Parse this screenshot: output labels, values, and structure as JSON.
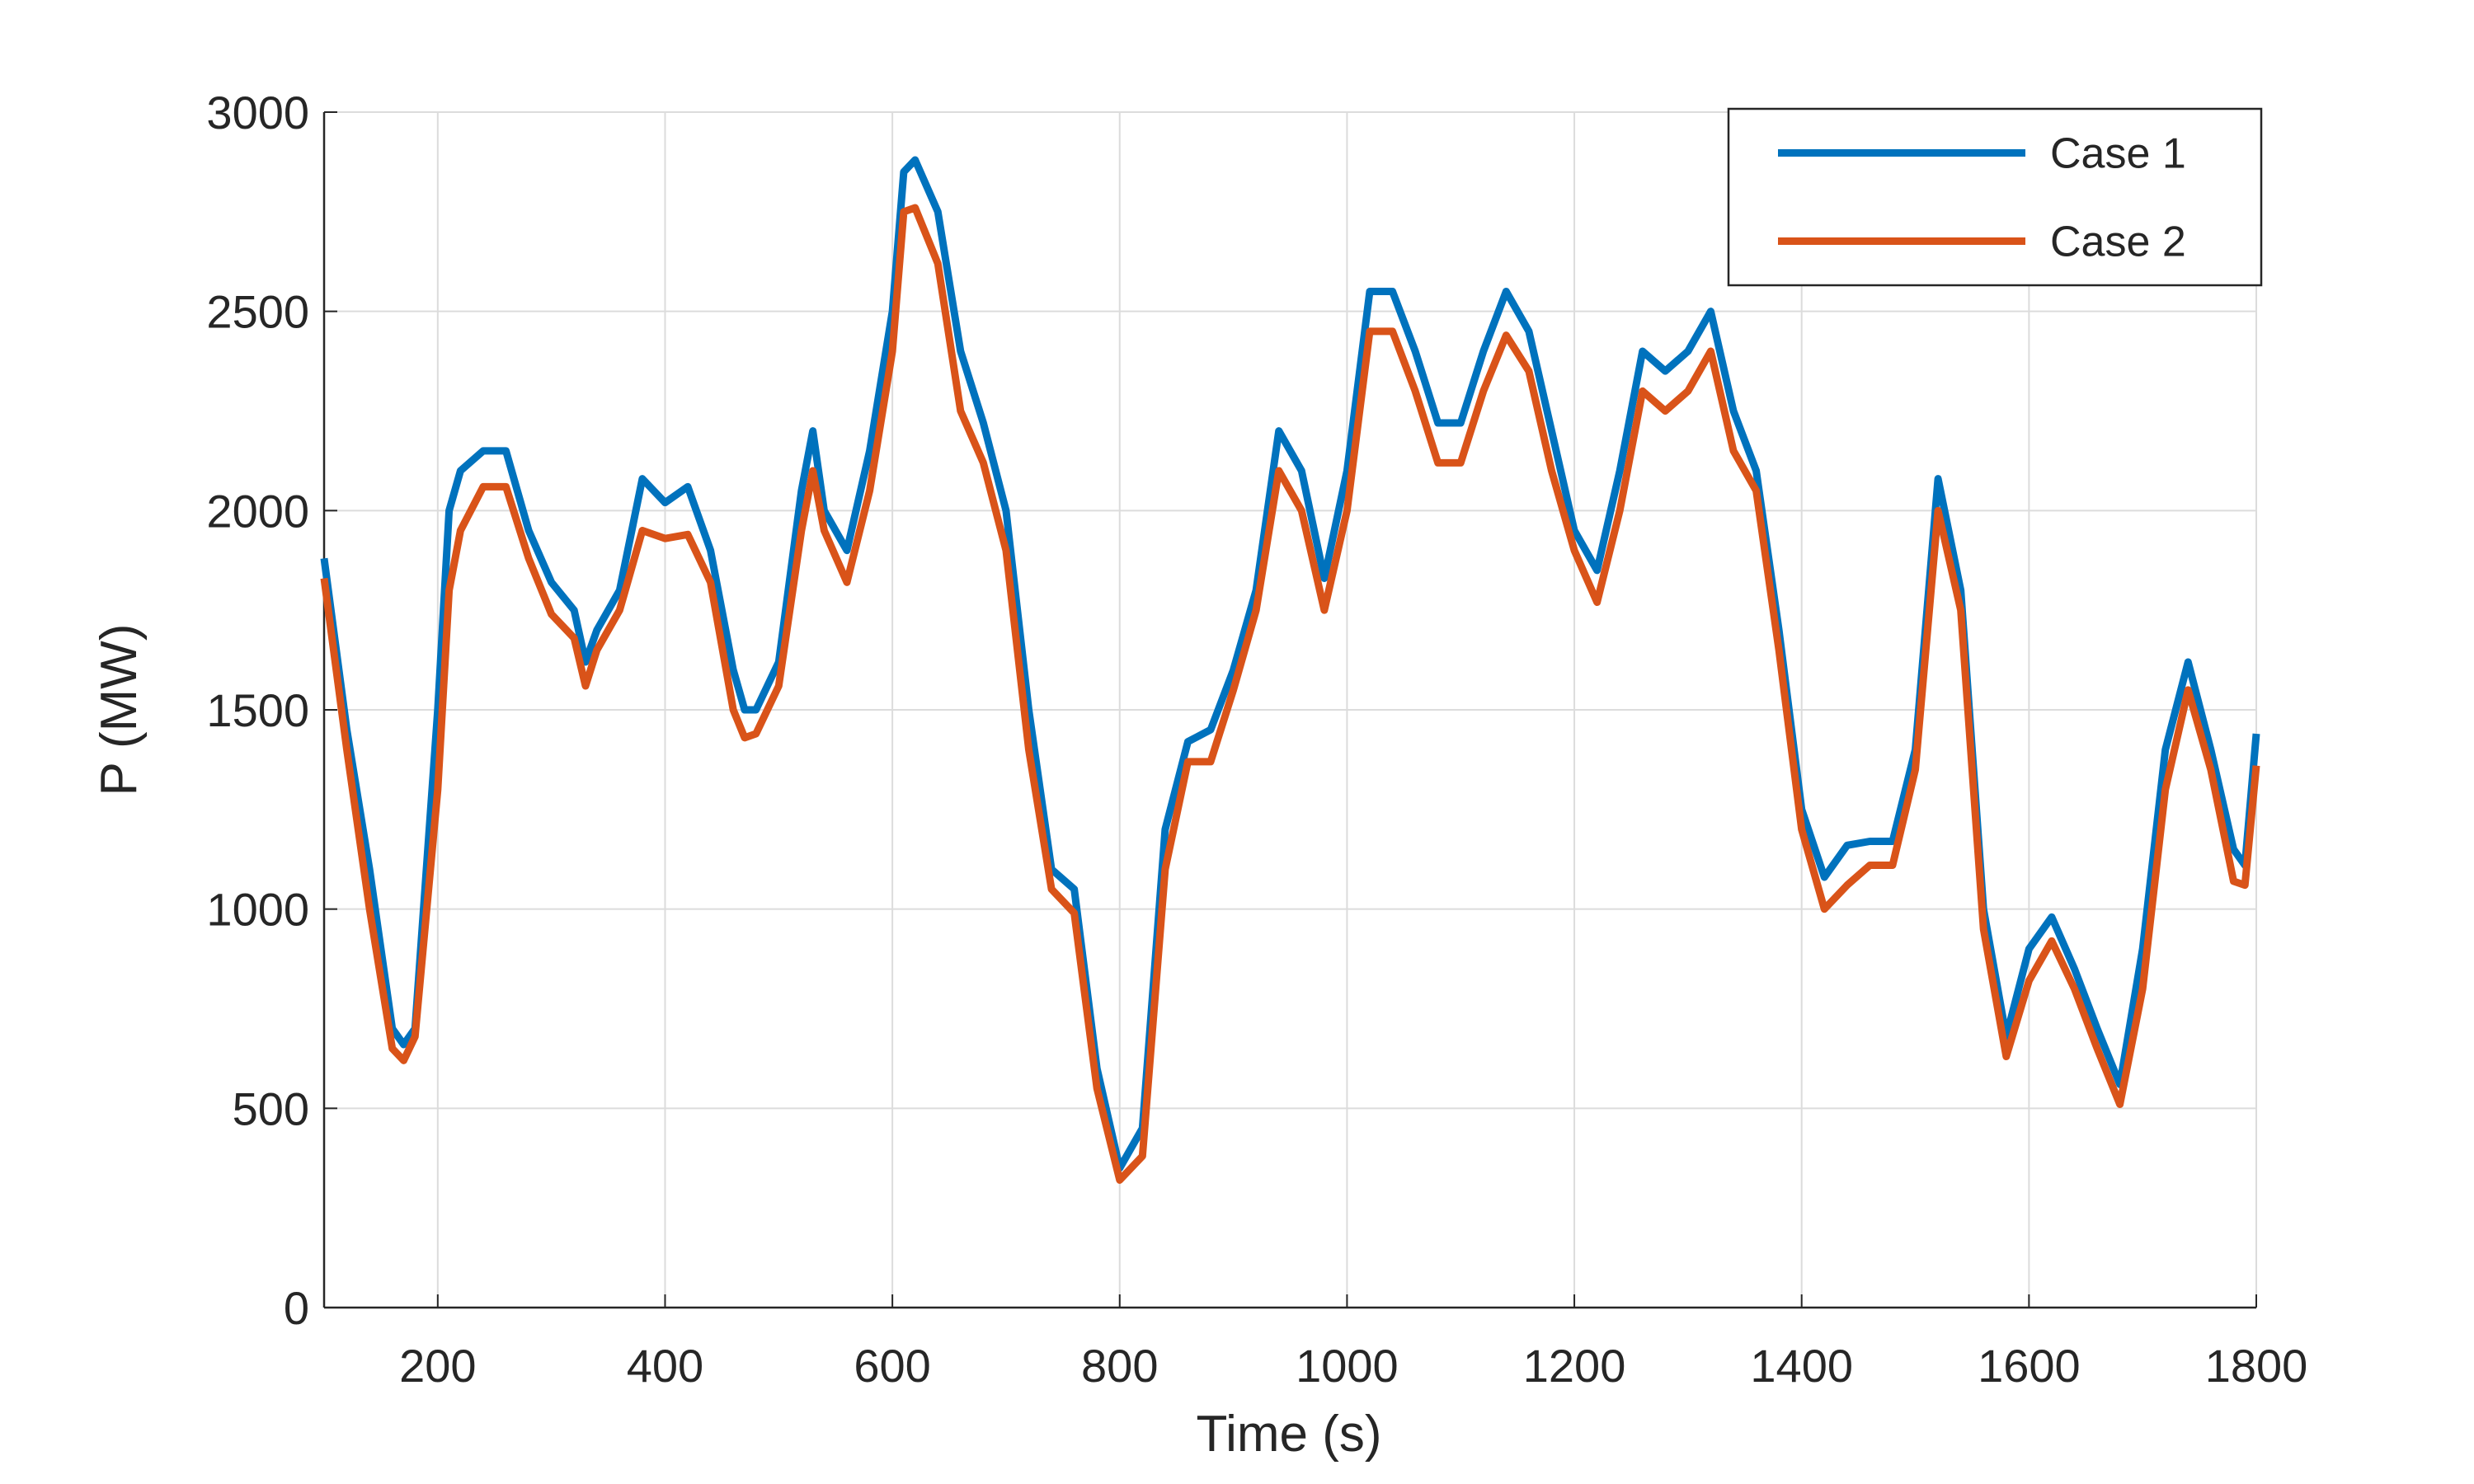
{
  "chart_data": {
    "type": "line",
    "x_label": "Time (s)",
    "y_label": "P (MW)",
    "x": [
      100,
      120,
      140,
      160,
      170,
      180,
      200,
      210,
      220,
      240,
      260,
      280,
      300,
      320,
      330,
      340,
      360,
      380,
      400,
      420,
      440,
      460,
      470,
      480,
      500,
      520,
      530,
      540,
      560,
      580,
      600,
      610,
      620,
      640,
      660,
      680,
      700,
      720,
      740,
      760,
      780,
      800,
      820,
      840,
      860,
      880,
      900,
      920,
      940,
      960,
      980,
      1000,
      1020,
      1040,
      1060,
      1080,
      1100,
      1120,
      1140,
      1160,
      1180,
      1200,
      1220,
      1240,
      1260,
      1280,
      1300,
      1320,
      1340,
      1360,
      1380,
      1400,
      1420,
      1440,
      1460,
      1480,
      1500,
      1520,
      1540,
      1560,
      1580,
      1600,
      1620,
      1640,
      1660,
      1680,
      1700,
      1720,
      1740,
      1760,
      1780,
      1790,
      1800
    ],
    "series": [
      {
        "name": "Case 1",
        "color": "#0072bd",
        "values": [
          1880,
          1450,
          1100,
          700,
          660,
          700,
          1500,
          2000,
          2100,
          2150,
          2150,
          1950,
          1820,
          1750,
          1620,
          1700,
          1800,
          2080,
          2020,
          2060,
          1900,
          1600,
          1500,
          1500,
          1620,
          2050,
          2200,
          2000,
          1900,
          2150,
          2500,
          2850,
          2880,
          2750,
          2400,
          2220,
          2000,
          1500,
          1100,
          1050,
          600,
          350,
          450,
          1200,
          1420,
          1450,
          1600,
          1800,
          2200,
          2100,
          1830,
          2100,
          2550,
          2550,
          2400,
          2220,
          2220,
          2400,
          2550,
          2450,
          2200,
          1950,
          1850,
          2100,
          2400,
          2350,
          2400,
          2500,
          2250,
          2100,
          1700,
          1250,
          1080,
          1160,
          1170,
          1170,
          1400,
          2080,
          1800,
          1000,
          680,
          900,
          980,
          850,
          700,
          560,
          900,
          1400,
          1620,
          1400,
          1150,
          1110,
          1440
        ]
      },
      {
        "name": "Case 2",
        "color": "#d95319",
        "values": [
          1830,
          1400,
          1000,
          650,
          620,
          680,
          1300,
          1800,
          1950,
          2060,
          2060,
          1880,
          1740,
          1680,
          1560,
          1650,
          1750,
          1950,
          1930,
          1940,
          1820,
          1500,
          1430,
          1440,
          1560,
          1950,
          2100,
          1950,
          1820,
          2050,
          2400,
          2750,
          2760,
          2620,
          2250,
          2120,
          1900,
          1400,
          1050,
          990,
          550,
          320,
          380,
          1100,
          1370,
          1370,
          1550,
          1750,
          2100,
          2000,
          1750,
          2000,
          2450,
          2450,
          2300,
          2120,
          2120,
          2300,
          2440,
          2350,
          2100,
          1900,
          1770,
          2000,
          2300,
          2250,
          2300,
          2400,
          2150,
          2050,
          1650,
          1200,
          1000,
          1060,
          1110,
          1110,
          1350,
          2000,
          1750,
          950,
          630,
          820,
          920,
          800,
          650,
          510,
          800,
          1300,
          1550,
          1350,
          1070,
          1060,
          1360
        ]
      }
    ],
    "xlim": [
      100,
      1800
    ],
    "xticks": [
      200,
      400,
      600,
      800,
      1000,
      1200,
      1400,
      1600,
      1800
    ],
    "ylim": [
      0,
      3000
    ],
    "yticks": [
      0,
      500,
      1000,
      1500,
      2000,
      2500,
      3000
    ],
    "grid": true,
    "legend": "upper right"
  }
}
